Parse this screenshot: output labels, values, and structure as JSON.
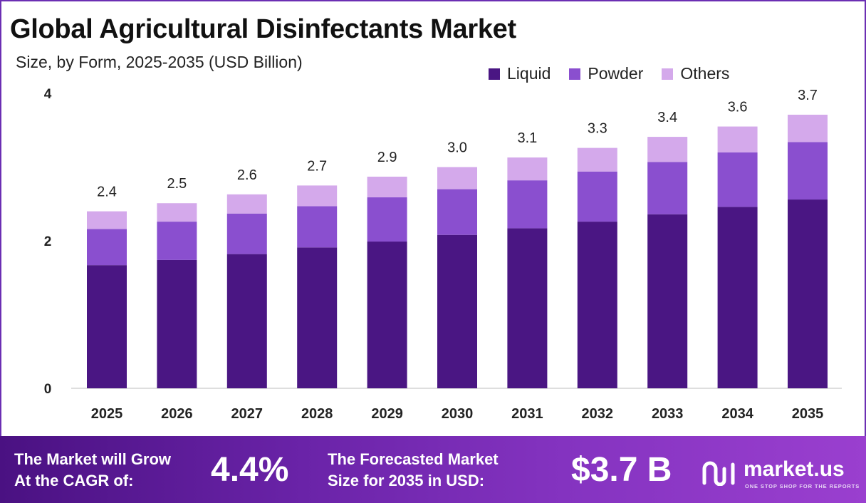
{
  "header": {
    "title": "Global Agricultural Disinfectants Market",
    "subtitle": "Size, by Form, 2025-2035 (USD Billion)"
  },
  "legend": [
    {
      "label": "Liquid",
      "color": "#4a1683"
    },
    {
      "label": "Powder",
      "color": "#8a4fcf"
    },
    {
      "label": "Others",
      "color": "#d4a9eb"
    }
  ],
  "chart_data": {
    "type": "bar",
    "stacked": true,
    "title": "Global Agricultural Disinfectants Market",
    "subtitle": "Size, by Form, 2025-2035 (USD Billion)",
    "xlabel": "",
    "ylabel": "",
    "categories": [
      "2025",
      "2026",
      "2027",
      "2028",
      "2029",
      "2030",
      "2031",
      "2032",
      "2033",
      "2034",
      "2035"
    ],
    "series": [
      {
        "name": "Liquid",
        "color": "#4a1683",
        "values": [
          1.67,
          1.74,
          1.82,
          1.91,
          1.99,
          2.08,
          2.17,
          2.26,
          2.36,
          2.46,
          2.56
        ]
      },
      {
        "name": "Powder",
        "color": "#8a4fcf",
        "values": [
          0.49,
          0.52,
          0.55,
          0.56,
          0.6,
          0.62,
          0.65,
          0.68,
          0.71,
          0.74,
          0.78
        ]
      },
      {
        "name": "Others",
        "color": "#d4a9eb",
        "values": [
          0.24,
          0.25,
          0.26,
          0.28,
          0.28,
          0.3,
          0.31,
          0.32,
          0.34,
          0.35,
          0.37
        ]
      }
    ],
    "totals": [
      "2.4",
      "2.5",
      "2.6",
      "2.7",
      "2.9",
      "3.0",
      "3.1",
      "3.3",
      "3.4",
      "3.6",
      "3.7"
    ],
    "yticks": [
      "0",
      "2",
      "4"
    ],
    "ylim": [
      0,
      4
    ],
    "grid": false,
    "legend_position": "top-right"
  },
  "footer": {
    "cagr_label_line1": "The Market will Grow",
    "cagr_label_line2": "At the CAGR of:",
    "cagr_value": "4.4%",
    "forecast_label_line1": "The Forecasted Market",
    "forecast_label_line2": "Size for 2035 in USD:",
    "forecast_value": "$3.7 B",
    "brand_name": "market.us",
    "brand_tagline": "ONE STOP SHOP FOR THE REPORTS"
  }
}
